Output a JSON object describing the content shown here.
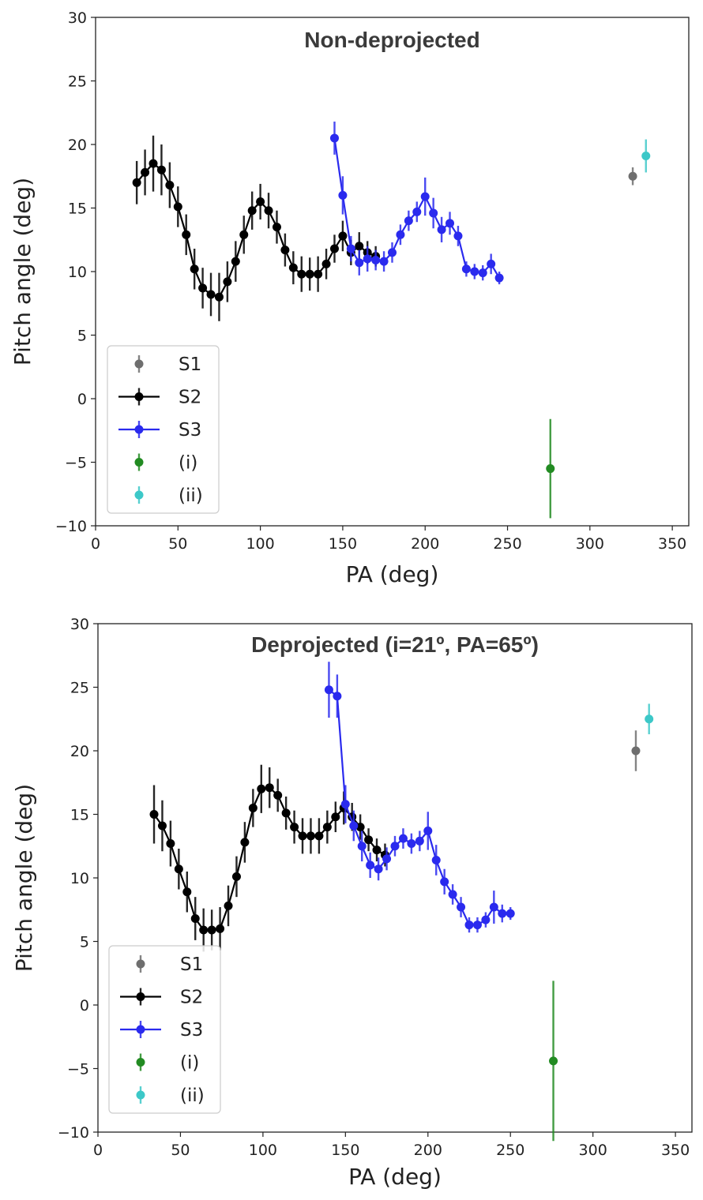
{
  "chart_data": [
    {
      "type": "line",
      "title": "Non-deprojected",
      "xlabel": "PA (deg)",
      "ylabel": "Pitch angle (deg)",
      "xlim": [
        0,
        360
      ],
      "ylim": [
        -10,
        30
      ],
      "xticks": [
        0,
        50,
        100,
        150,
        200,
        250,
        300,
        350
      ],
      "yticks": [
        -10,
        -5,
        0,
        5,
        10,
        15,
        20,
        25,
        30
      ],
      "legend_position": "lower-left",
      "series": [
        {
          "name": "S1",
          "color": "#6e6e6e",
          "connected": false,
          "points": [
            [
              326,
              17.5,
              0.7
            ]
          ]
        },
        {
          "name": "S2",
          "color": "#000000",
          "connected": true,
          "points": [
            [
              25,
              17.0,
              1.7
            ],
            [
              30,
              17.8,
              1.8
            ],
            [
              35,
              18.5,
              2.2
            ],
            [
              40,
              18.0,
              2.0
            ],
            [
              45,
              16.8,
              1.8
            ],
            [
              50,
              15.1,
              1.6
            ],
            [
              55,
              12.9,
              1.6
            ],
            [
              60,
              10.2,
              1.6
            ],
            [
              65,
              8.7,
              1.6
            ],
            [
              70,
              8.2,
              1.7
            ],
            [
              75,
              8.0,
              1.9
            ],
            [
              80,
              9.2,
              1.6
            ],
            [
              85,
              10.8,
              1.6
            ],
            [
              90,
              12.9,
              1.5
            ],
            [
              95,
              14.8,
              1.5
            ],
            [
              100,
              15.5,
              1.4
            ],
            [
              105,
              14.8,
              1.4
            ],
            [
              110,
              13.5,
              1.3
            ],
            [
              115,
              11.7,
              1.3
            ],
            [
              120,
              10.3,
              1.3
            ],
            [
              125,
              9.8,
              1.4
            ],
            [
              130,
              9.8,
              1.3
            ],
            [
              135,
              9.8,
              1.4
            ],
            [
              140,
              10.6,
              1.2
            ],
            [
              145,
              11.8,
              1.1
            ],
            [
              150,
              12.8,
              1.2
            ],
            [
              155,
              11.5,
              1.0
            ],
            [
              160,
              12.0,
              1.1
            ],
            [
              165,
              11.5,
              0.9
            ],
            [
              170,
              11.2,
              0.8
            ]
          ]
        },
        {
          "name": "S3",
          "color": "#2a2aee",
          "connected": true,
          "points": [
            [
              145,
              20.5,
              1.3
            ],
            [
              150,
              16.0,
              1.5
            ],
            [
              155,
              11.8,
              1.0
            ],
            [
              160,
              10.7,
              1.0
            ],
            [
              165,
              11.0,
              1.0
            ],
            [
              170,
              10.9,
              0.8
            ],
            [
              175,
              10.8,
              0.8
            ],
            [
              180,
              11.5,
              0.8
            ],
            [
              185,
              12.9,
              0.8
            ],
            [
              190,
              14.0,
              0.8
            ],
            [
              195,
              14.7,
              0.8
            ],
            [
              200,
              15.9,
              1.5
            ],
            [
              205,
              14.6,
              1.2
            ],
            [
              210,
              13.3,
              1.0
            ],
            [
              215,
              13.8,
              0.9
            ],
            [
              220,
              12.8,
              0.8
            ],
            [
              225,
              10.2,
              0.6
            ],
            [
              230,
              10.0,
              0.6
            ],
            [
              235,
              9.9,
              0.6
            ],
            [
              240,
              10.6,
              0.8
            ],
            [
              245,
              9.5,
              0.5
            ]
          ]
        },
        {
          "name": "(i)",
          "color": "#228b22",
          "connected": false,
          "points": [
            [
              276,
              -5.5,
              3.9
            ]
          ]
        },
        {
          "name": "(ii)",
          "color": "#3cc8c8",
          "connected": false,
          "points": [
            [
              334,
              19.1,
              1.3
            ]
          ]
        }
      ]
    },
    {
      "type": "line",
      "title": "Deprojected (i=21º, PA=65º)",
      "xlabel": "PA (deg)",
      "ylabel": "Pitch angle (deg)",
      "xlim": [
        0,
        360
      ],
      "ylim": [
        -10,
        30
      ],
      "xticks": [
        0,
        50,
        100,
        150,
        200,
        250,
        300,
        350
      ],
      "yticks": [
        -10,
        -5,
        0,
        5,
        10,
        15,
        20,
        25,
        30
      ],
      "legend_position": "lower-left",
      "series": [
        {
          "name": "S1",
          "color": "#6e6e6e",
          "connected": false,
          "points": [
            [
              326,
              20.0,
              1.6
            ]
          ]
        },
        {
          "name": "S2",
          "color": "#000000",
          "connected": true,
          "points": [
            [
              34,
              15.0,
              2.3
            ],
            [
              39,
              14.1,
              2.0
            ],
            [
              44,
              12.7,
              1.8
            ],
            [
              49,
              10.7,
              1.6
            ],
            [
              54,
              8.9,
              1.6
            ],
            [
              59,
              6.8,
              1.7
            ],
            [
              64,
              5.9,
              1.7
            ],
            [
              69,
              5.9,
              1.6
            ],
            [
              74,
              6.0,
              1.7
            ],
            [
              79,
              7.8,
              1.6
            ],
            [
              84,
              10.1,
              1.6
            ],
            [
              89,
              12.8,
              1.6
            ],
            [
              94,
              15.5,
              1.5
            ],
            [
              99,
              17.0,
              1.9
            ],
            [
              104,
              17.1,
              1.6
            ],
            [
              109,
              16.5,
              1.3
            ],
            [
              114,
              15.1,
              1.3
            ],
            [
              119,
              14.0,
              1.3
            ],
            [
              124,
              13.3,
              1.4
            ],
            [
              129,
              13.3,
              1.4
            ],
            [
              134,
              13.3,
              1.4
            ],
            [
              139,
              14.0,
              1.3
            ],
            [
              144,
              14.8,
              1.2
            ],
            [
              149,
              15.5,
              1.3
            ],
            [
              154,
              14.8,
              1.1
            ],
            [
              159,
              14.0,
              1.0
            ],
            [
              164,
              13.0,
              0.9
            ],
            [
              169,
              12.2,
              0.9
            ],
            [
              174,
              11.8,
              0.9
            ]
          ]
        },
        {
          "name": "S3",
          "color": "#2a2aee",
          "connected": true,
          "points": [
            [
              140,
              24.8,
              2.2
            ],
            [
              145,
              24.3,
              1.7
            ],
            [
              150,
              15.8,
              1.5
            ],
            [
              155,
              14.1,
              1.2
            ],
            [
              160,
              12.5,
              1.2
            ],
            [
              165,
              11.0,
              1.0
            ],
            [
              170,
              10.7,
              0.9
            ],
            [
              175,
              11.5,
              0.9
            ],
            [
              180,
              12.5,
              0.8
            ],
            [
              185,
              13.1,
              0.8
            ],
            [
              190,
              12.7,
              0.8
            ],
            [
              195,
              12.9,
              0.8
            ],
            [
              200,
              13.7,
              1.5
            ],
            [
              205,
              11.4,
              1.2
            ],
            [
              210,
              9.7,
              1.0
            ],
            [
              215,
              8.7,
              0.8
            ],
            [
              220,
              7.7,
              0.8
            ],
            [
              225,
              6.3,
              0.6
            ],
            [
              230,
              6.3,
              0.6
            ],
            [
              235,
              6.7,
              0.6
            ],
            [
              240,
              7.7,
              1.3
            ],
            [
              245,
              7.2,
              0.7
            ],
            [
              250,
              7.2,
              0.5
            ]
          ]
        },
        {
          "name": "(i)",
          "color": "#228b22",
          "connected": false,
          "points": [
            [
              276,
              -4.4,
              6.3
            ]
          ]
        },
        {
          "name": "(ii)",
          "color": "#3cc8c8",
          "connected": false,
          "points": [
            [
              334,
              22.5,
              1.2
            ]
          ]
        }
      ]
    }
  ]
}
